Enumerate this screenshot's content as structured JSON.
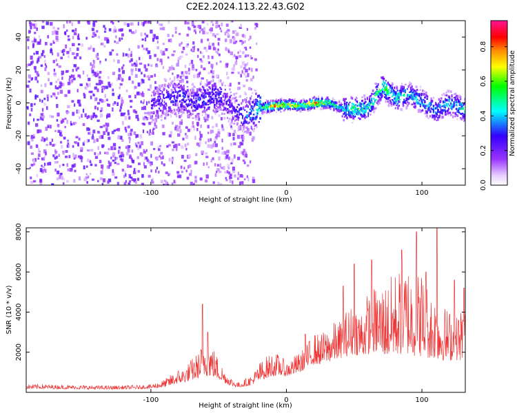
{
  "title": "C2E2.2024.113.22.43.G02",
  "chart_data": [
    {
      "type": "heatmap",
      "xlabel": "Height of straight line (km)",
      "ylabel": "Frequency (Hz)",
      "xlim": [
        -192,
        132
      ],
      "ylim": [
        -50,
        50
      ],
      "xticks": [
        -100,
        0,
        100
      ],
      "yticks": [
        -40,
        -20,
        0,
        20,
        40
      ],
      "grid": false,
      "colorbar": {
        "label": "Normalized spectral amplitude",
        "range": [
          0,
          0.95
        ],
        "ticks": [
          0.0,
          0.2,
          0.4,
          0.6,
          0.8
        ],
        "colormap": "rainbow: white, violet, blue, cyan, green, yellow, orange, red, magenta"
      },
      "description": "Weak scattered violet echoes across all frequencies below about -25 km; a concentrated band near 0 Hz from about -25 km to 132 km, strongest (red) between -15 km and 40 km with upward excursions near 70 km and 90 km",
      "ridge": {
        "x": [
          -100,
          -90,
          -80,
          -70,
          -60,
          -50,
          -40,
          -30,
          -20,
          -10,
          0,
          10,
          20,
          30,
          40,
          50,
          60,
          70,
          80,
          90,
          100,
          110,
          120,
          130
        ],
        "y": [
          -2,
          2,
          4,
          0,
          3,
          5,
          -4,
          -8,
          -3,
          -2,
          -1,
          -2,
          0,
          0,
          -3,
          -4,
          -3,
          10,
          3,
          5,
          1,
          -5,
          0,
          -4
        ],
        "peak": [
          0.25,
          0.3,
          0.35,
          0.3,
          0.35,
          0.3,
          0.25,
          0.35,
          0.5,
          0.85,
          0.75,
          0.6,
          0.85,
          0.6,
          0.45,
          0.55,
          0.5,
          0.6,
          0.5,
          0.45,
          0.45,
          0.4,
          0.45,
          0.5
        ]
      }
    },
    {
      "type": "line",
      "xlabel": "Height of straight line (km)",
      "ylabel": "SNR (10 * v/v)",
      "xlim": [
        -192,
        132
      ],
      "ylim": [
        0,
        8200
      ],
      "xticks": [
        -100,
        0,
        100
      ],
      "yticks": [
        2000,
        4000,
        6000,
        8000
      ],
      "grid": false,
      "series": [
        {
          "color": "#ee3333",
          "style": "noisy trace",
          "x": [
            -192,
            -180,
            -170,
            -160,
            -150,
            -140,
            -130,
            -120,
            -110,
            -100,
            -90,
            -85,
            -80,
            -75,
            -70,
            -65,
            -60,
            -55,
            -50,
            -45,
            -40,
            -35,
            -30,
            -25,
            -20,
            -15,
            -10,
            -5,
            0,
            5,
            10,
            15,
            20,
            25,
            30,
            35,
            40,
            45,
            50,
            55,
            60,
            65,
            70,
            75,
            80,
            85,
            90,
            95,
            100,
            105,
            110,
            115,
            120,
            125,
            130
          ],
          "upper": [
            400,
            420,
            380,
            380,
            360,
            350,
            340,
            350,
            360,
            400,
            650,
            900,
            1150,
            1250,
            1700,
            2000,
            2900,
            2400,
            1700,
            1050,
            700,
            500,
            700,
            900,
            1500,
            1800,
            2000,
            1900,
            1500,
            1800,
            2000,
            2400,
            3000,
            2900,
            3200,
            3500,
            3600,
            4200,
            4500,
            4300,
            5000,
            5300,
            5500,
            5600,
            6100,
            6300,
            6600,
            6000,
            6200,
            5300,
            5000,
            4400,
            4200,
            3800,
            4500
          ],
          "lower": [
            180,
            180,
            170,
            170,
            160,
            150,
            150,
            160,
            170,
            200,
            250,
            350,
            450,
            500,
            600,
            700,
            800,
            800,
            650,
            450,
            300,
            250,
            300,
            400,
            550,
            700,
            800,
            850,
            800,
            900,
            1000,
            1200,
            1400,
            1400,
            1500,
            1600,
            1700,
            1800,
            1900,
            1800,
            1900,
            2000,
            1900,
            1800,
            1900,
            1900,
            1900,
            1800,
            1800,
            1700,
            1700,
            1600,
            1600,
            1600,
            1600
          ],
          "spikes": [
            [
              -62,
              4400
            ],
            [
              -58,
              3000
            ],
            [
              14,
              2900
            ],
            [
              42,
              5300
            ],
            [
              50,
              6400
            ],
            [
              63,
              6600
            ],
            [
              85,
              7100
            ],
            [
              96,
              8000
            ],
            [
              103,
              6000
            ],
            [
              111,
              8200
            ],
            [
              124,
              5600
            ],
            [
              131,
              5200
            ]
          ]
        }
      ]
    }
  ]
}
